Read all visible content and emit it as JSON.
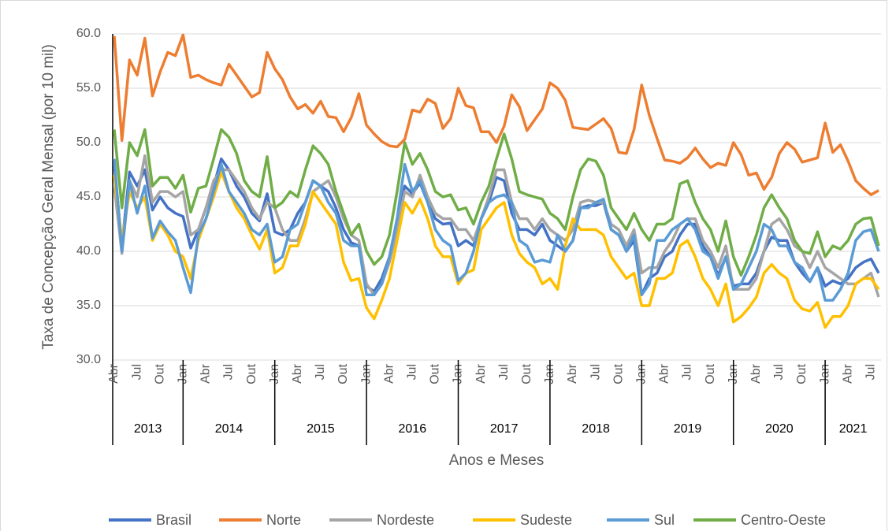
{
  "chart_data": {
    "type": "line",
    "y_label": "Taxa de Concepção Geral Mensal (por 10 mil)",
    "x_label": "Anos e Meses",
    "categories": [
      "Abr",
      null,
      null,
      "Jul",
      null,
      null,
      "Out",
      null,
      null,
      "Jan",
      null,
      null,
      "Abr",
      null,
      null,
      "Jul",
      null,
      null,
      "Out",
      null,
      null,
      "Jan",
      null,
      null,
      "Abr",
      null,
      null,
      "Jul",
      null,
      null,
      "Out",
      null,
      null,
      "Jan",
      null,
      null,
      "Abr",
      null,
      null,
      "Jul",
      null,
      null,
      "Out",
      null,
      null,
      "Jan",
      null,
      null,
      "Abr",
      null,
      null,
      "Jul",
      null,
      null,
      "Out",
      null,
      null,
      "Jan",
      null,
      null,
      "Abr",
      null,
      null,
      "Jul",
      null,
      null,
      "Out",
      null,
      null,
      "Jan",
      null,
      null,
      "Abr",
      null,
      null,
      "Jul",
      null,
      null,
      "Out",
      null,
      null,
      "Jan",
      null,
      null,
      "Abr",
      null,
      null,
      "Jul",
      null,
      null,
      "Out",
      null,
      null,
      "Jan",
      null,
      null,
      "Abr",
      null,
      null,
      "Jul",
      null
    ],
    "years": [
      "2013",
      "2014",
      "2015",
      "2016",
      "2017",
      "2018",
      "2019",
      "2020",
      "2021"
    ],
    "ylim": [
      30,
      60
    ],
    "yticks": [
      {
        "value": 30,
        "label": "30.0"
      },
      {
        "value": 35,
        "label": "35.0"
      },
      {
        "value": 40,
        "label": "40.0"
      },
      {
        "value": 45,
        "label": "45.0"
      },
      {
        "value": 50,
        "label": "50.0"
      },
      {
        "value": 55,
        "label": "55.0"
      },
      {
        "value": 60,
        "label": "60.0"
      }
    ],
    "grid": true,
    "legend": "bottom",
    "series": [
      {
        "name": "Brasil",
        "color": "#4472c4",
        "values": [
          48.0,
          40.5,
          47.3,
          46.0,
          47.5,
          43.8,
          45.0,
          44.0,
          43.5,
          43.2,
          40.3,
          42.0,
          44.0,
          46.0,
          48.5,
          47.5,
          46.0,
          45.0,
          43.5,
          42.8,
          45.3,
          41.8,
          41.5,
          42.0,
          43.5,
          44.5,
          46.5,
          46.0,
          45.5,
          44.0,
          42.0,
          40.8,
          40.5,
          36.8,
          36.3,
          37.5,
          39.5,
          42.5,
          46.0,
          45.3,
          46.3,
          44.5,
          43.0,
          42.5,
          42.6,
          40.5,
          41.0,
          40.5,
          43.0,
          44.5,
          46.8,
          46.5,
          43.5,
          42.0,
          42.0,
          41.5,
          42.5,
          41.0,
          40.5,
          40.0,
          41.0,
          44.0,
          44.2,
          44.2,
          44.5,
          42.0,
          41.5,
          40.0,
          41.0,
          36.0,
          37.5,
          38.0,
          39.5,
          40.0,
          41.5,
          42.5,
          42.5,
          40.5,
          39.5,
          37.8,
          39.5,
          36.8,
          37.0,
          37.0,
          38.0,
          40.0,
          41.3,
          41.0,
          41.0,
          39.0,
          38.0,
          37.2,
          38.5,
          36.8,
          37.3,
          37.0,
          37.5,
          38.5,
          39.0,
          39.3,
          38.0
        ]
      },
      {
        "name": "Norte",
        "color": "#ed7d31",
        "values": [
          59.8,
          50.2,
          57.6,
          56.2,
          59.6,
          54.3,
          56.5,
          58.3,
          58.0,
          59.9,
          56.0,
          56.2,
          55.8,
          55.5,
          55.3,
          57.2,
          56.2,
          55.2,
          54.2,
          54.6,
          58.3,
          56.8,
          55.8,
          54.2,
          53.1,
          53.5,
          52.7,
          53.8,
          52.4,
          52.3,
          51.0,
          52.3,
          54.5,
          51.6,
          50.8,
          50.1,
          49.7,
          49.6,
          50.3,
          53.0,
          52.8,
          54.0,
          53.6,
          51.3,
          52.2,
          55.0,
          53.4,
          53.2,
          51.0,
          51.0,
          50.0,
          51.5,
          54.4,
          53.3,
          51.1,
          52.1,
          53.1,
          55.5,
          55.0,
          53.9,
          51.4,
          51.3,
          51.2,
          51.7,
          52.2,
          51.3,
          49.1,
          49.0,
          51.2,
          55.3,
          52.5,
          50.4,
          48.4,
          48.3,
          48.1,
          48.6,
          49.5,
          48.5,
          47.7,
          48.1,
          47.9,
          50.0,
          48.9,
          47.0,
          47.2,
          45.7,
          46.8,
          49.0,
          50.0,
          49.4,
          48.2,
          48.4,
          48.6,
          51.8,
          49.1,
          49.8,
          48.3,
          46.5,
          45.8,
          45.2,
          45.6
        ]
      },
      {
        "name": "Nordeste",
        "color": "#a5a5a5",
        "values": [
          46.0,
          39.8,
          46.5,
          45.0,
          48.8,
          44.5,
          45.5,
          45.5,
          45.0,
          45.5,
          41.5,
          42.0,
          44.0,
          46.5,
          47.5,
          47.5,
          46.5,
          45.5,
          44.0,
          43.0,
          44.5,
          44.0,
          42.0,
          41.0,
          41.0,
          43.0,
          45.5,
          46.0,
          46.5,
          45.0,
          43.0,
          41.5,
          41.0,
          37.0,
          36.0,
          37.0,
          39.0,
          42.0,
          45.5,
          45.0,
          47.0,
          45.0,
          43.5,
          43.0,
          43.0,
          42.0,
          42.0,
          41.0,
          43.0,
          45.0,
          47.5,
          47.5,
          44.5,
          43.0,
          43.0,
          42.0,
          43.0,
          42.0,
          41.5,
          41.0,
          42.0,
          44.5,
          44.7,
          44.5,
          44.5,
          42.5,
          42.0,
          40.5,
          42.0,
          38.0,
          38.5,
          38.5,
          40.0,
          41.0,
          42.5,
          43.0,
          43.0,
          41.0,
          40.0,
          38.5,
          40.5,
          36.5,
          36.5,
          36.5,
          37.5,
          40.0,
          42.5,
          43.0,
          42.0,
          40.5,
          40.0,
          38.5,
          40.0,
          38.5,
          38.0,
          37.5,
          37.0,
          37.0,
          37.5,
          38.0,
          35.8
        ]
      },
      {
        "name": "Sudeste",
        "color": "#ffc000",
        "values": [
          47.0,
          41.0,
          45.5,
          44.0,
          45.0,
          41.0,
          42.5,
          41.5,
          40.0,
          39.5,
          37.5,
          41.0,
          43.0,
          45.0,
          47.3,
          45.5,
          44.0,
          43.0,
          41.5,
          40.2,
          42.0,
          38.0,
          38.5,
          40.5,
          40.5,
          42.5,
          45.5,
          44.5,
          43.5,
          42.5,
          39.0,
          37.3,
          37.5,
          34.8,
          33.8,
          35.5,
          37.5,
          41.0,
          44.5,
          43.5,
          44.8,
          43.0,
          40.5,
          39.5,
          39.5,
          37.0,
          38.0,
          38.3,
          42.0,
          43.0,
          44.0,
          44.5,
          41.5,
          39.8,
          39.0,
          38.5,
          37.0,
          37.5,
          36.5,
          40.5,
          43.0,
          42.0,
          42.0,
          42.0,
          41.5,
          39.5,
          38.5,
          37.5,
          38.0,
          35.0,
          35.0,
          37.5,
          37.5,
          38.0,
          40.5,
          41.0,
          39.5,
          37.5,
          36.5,
          35.0,
          37.0,
          33.5,
          34.0,
          34.8,
          35.8,
          38.0,
          38.8,
          38.0,
          37.5,
          35.5,
          34.7,
          34.5,
          35.3,
          33.0,
          34.0,
          34.0,
          35.0,
          37.0,
          37.5,
          37.5,
          36.5
        ]
      },
      {
        "name": "Sul",
        "color": "#5b9bd5",
        "values": [
          48.5,
          40.0,
          46.5,
          43.5,
          46.0,
          41.2,
          42.8,
          41.8,
          41.0,
          38.5,
          36.2,
          41.5,
          43.0,
          45.5,
          48.0,
          45.5,
          44.5,
          43.5,
          42.0,
          41.5,
          42.5,
          39.0,
          39.5,
          42.0,
          42.5,
          44.5,
          46.5,
          46.0,
          44.5,
          43.5,
          41.0,
          40.5,
          40.5,
          36.0,
          36.0,
          37.0,
          39.5,
          43.0,
          48.0,
          45.5,
          46.5,
          44.5,
          42.0,
          41.0,
          40.5,
          37.3,
          38.0,
          40.0,
          43.0,
          44.5,
          45.0,
          45.2,
          44.5,
          41.0,
          40.5,
          39.0,
          39.2,
          39.0,
          41.5,
          40.0,
          41.0,
          44.0,
          44.0,
          44.5,
          44.8,
          42.0,
          41.5,
          40.0,
          41.5,
          36.0,
          37.0,
          41.0,
          41.0,
          42.0,
          42.5,
          43.0,
          42.0,
          40.0,
          39.5,
          37.5,
          39.5,
          36.5,
          37.0,
          38.5,
          40.0,
          42.5,
          42.0,
          40.5,
          40.5,
          39.0,
          38.5,
          37.2,
          38.5,
          35.5,
          35.5,
          36.5,
          38.0,
          41.0,
          41.8,
          42.0,
          40.0
        ]
      },
      {
        "name": "Centro-Oeste",
        "color": "#70ad47",
        "values": [
          51.2,
          44.0,
          50.0,
          48.8,
          51.2,
          46.0,
          46.8,
          46.8,
          45.8,
          47.0,
          43.6,
          45.8,
          46.0,
          48.5,
          51.2,
          50.5,
          49.0,
          46.5,
          45.5,
          45.0,
          48.7,
          44.0,
          44.5,
          45.5,
          45.0,
          47.5,
          49.7,
          49.0,
          48.0,
          45.5,
          43.5,
          41.5,
          42.5,
          40.0,
          38.8,
          39.5,
          41.5,
          45.5,
          50.0,
          48.0,
          49.0,
          47.5,
          45.5,
          45.0,
          45.2,
          43.8,
          44.0,
          42.5,
          44.5,
          46.0,
          48.5,
          50.8,
          48.5,
          45.5,
          45.2,
          45.0,
          44.8,
          43.5,
          43.0,
          42.0,
          45.0,
          47.5,
          48.5,
          48.3,
          47.0,
          44.0,
          43.0,
          42.0,
          43.5,
          42.0,
          41.0,
          42.5,
          42.5,
          43.0,
          46.2,
          46.5,
          44.5,
          43.0,
          42.0,
          40.0,
          42.8,
          39.5,
          37.8,
          39.5,
          41.5,
          44.0,
          45.2,
          44.0,
          43.0,
          41.0,
          40.0,
          39.8,
          41.8,
          39.5,
          40.5,
          40.2,
          41.0,
          42.5,
          43.0,
          43.1,
          40.5
        ]
      }
    ]
  }
}
